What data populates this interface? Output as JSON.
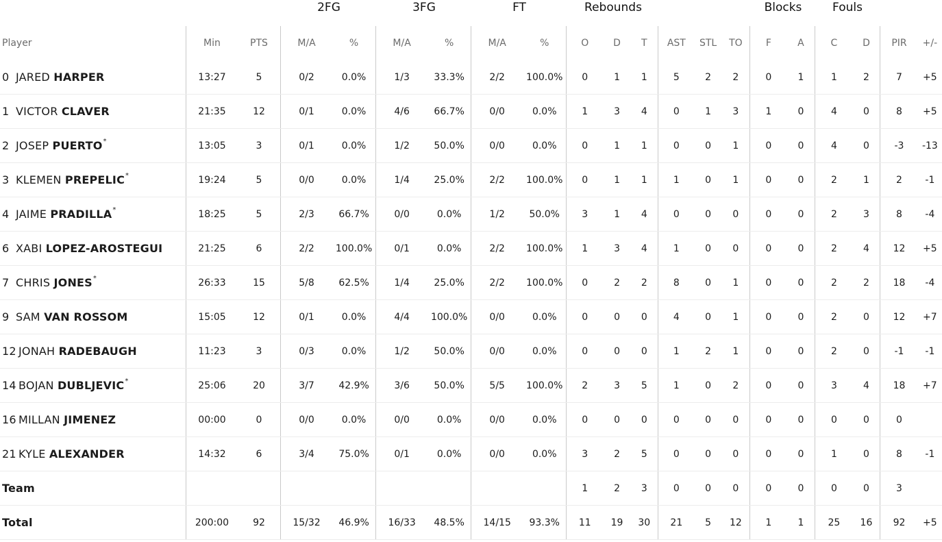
{
  "groups": {
    "fg2": "2FG",
    "fg3": "3FG",
    "ft": "FT",
    "reb": "Rebounds",
    "blk": "Blocks",
    "fouls": "Fouls"
  },
  "headers": [
    "Player",
    "Min",
    "PTS",
    "M/A",
    "%",
    "M/A",
    "%",
    "M/A",
    "%",
    "O",
    "D",
    "T",
    "AST",
    "STL",
    "TO",
    "F",
    "A",
    "C",
    "D",
    "PIR",
    "+/-"
  ],
  "players": [
    {
      "num": "0",
      "first": "JARED",
      "last": "HARPER",
      "star": false,
      "stats": [
        "13:27",
        "5",
        "0/2",
        "0.0%",
        "1/3",
        "33.3%",
        "2/2",
        "100.0%",
        "0",
        "1",
        "1",
        "5",
        "2",
        "2",
        "0",
        "1",
        "1",
        "2",
        "7",
        "+5"
      ]
    },
    {
      "num": "1",
      "first": "VICTOR",
      "last": "CLAVER",
      "star": false,
      "stats": [
        "21:35",
        "12",
        "0/1",
        "0.0%",
        "4/6",
        "66.7%",
        "0/0",
        "0.0%",
        "1",
        "3",
        "4",
        "0",
        "1",
        "3",
        "1",
        "0",
        "4",
        "0",
        "8",
        "+5"
      ]
    },
    {
      "num": "2",
      "first": "JOSEP",
      "last": "PUERTO",
      "star": true,
      "stats": [
        "13:05",
        "3",
        "0/1",
        "0.0%",
        "1/2",
        "50.0%",
        "0/0",
        "0.0%",
        "0",
        "1",
        "1",
        "0",
        "0",
        "1",
        "0",
        "0",
        "4",
        "0",
        "-3",
        "-13"
      ]
    },
    {
      "num": "3",
      "first": "KLEMEN",
      "last": "PREPELIC",
      "star": true,
      "stats": [
        "19:24",
        "5",
        "0/0",
        "0.0%",
        "1/4",
        "25.0%",
        "2/2",
        "100.0%",
        "0",
        "1",
        "1",
        "1",
        "0",
        "1",
        "0",
        "0",
        "2",
        "1",
        "2",
        "-1"
      ]
    },
    {
      "num": "4",
      "first": "JAIME",
      "last": "PRADILLA",
      "star": true,
      "stats": [
        "18:25",
        "5",
        "2/3",
        "66.7%",
        "0/0",
        "0.0%",
        "1/2",
        "50.0%",
        "3",
        "1",
        "4",
        "0",
        "0",
        "0",
        "0",
        "0",
        "2",
        "3",
        "8",
        "-4"
      ]
    },
    {
      "num": "6",
      "first": "XABI",
      "last": "LOPEZ-AROSTEGUI",
      "star": false,
      "stats": [
        "21:25",
        "6",
        "2/2",
        "100.0%",
        "0/1",
        "0.0%",
        "2/2",
        "100.0%",
        "1",
        "3",
        "4",
        "1",
        "0",
        "0",
        "0",
        "0",
        "2",
        "4",
        "12",
        "+5"
      ]
    },
    {
      "num": "7",
      "first": "CHRIS",
      "last": "JONES",
      "star": true,
      "stats": [
        "26:33",
        "15",
        "5/8",
        "62.5%",
        "1/4",
        "25.0%",
        "2/2",
        "100.0%",
        "0",
        "2",
        "2",
        "8",
        "0",
        "1",
        "0",
        "0",
        "2",
        "2",
        "18",
        "-4"
      ]
    },
    {
      "num": "9",
      "first": "SAM",
      "last": "VAN ROSSOM",
      "star": false,
      "stats": [
        "15:05",
        "12",
        "0/1",
        "0.0%",
        "4/4",
        "100.0%",
        "0/0",
        "0.0%",
        "0",
        "0",
        "0",
        "4",
        "0",
        "1",
        "0",
        "0",
        "2",
        "0",
        "12",
        "+7"
      ]
    },
    {
      "num": "12",
      "first": "JONAH",
      "last": "RADEBAUGH",
      "star": false,
      "stats": [
        "11:23",
        "3",
        "0/3",
        "0.0%",
        "1/2",
        "50.0%",
        "0/0",
        "0.0%",
        "0",
        "0",
        "0",
        "1",
        "2",
        "1",
        "0",
        "0",
        "2",
        "0",
        "-1",
        "-1"
      ]
    },
    {
      "num": "14",
      "first": "BOJAN",
      "last": "DUBLJEVIC",
      "star": true,
      "stats": [
        "25:06",
        "20",
        "3/7",
        "42.9%",
        "3/6",
        "50.0%",
        "5/5",
        "100.0%",
        "2",
        "3",
        "5",
        "1",
        "0",
        "2",
        "0",
        "0",
        "3",
        "4",
        "18",
        "+7"
      ]
    },
    {
      "num": "16",
      "first": "MILLAN",
      "last": "JIMENEZ",
      "star": false,
      "stats": [
        "00:00",
        "0",
        "0/0",
        "0.0%",
        "0/0",
        "0.0%",
        "0/0",
        "0.0%",
        "0",
        "0",
        "0",
        "0",
        "0",
        "0",
        "0",
        "0",
        "0",
        "0",
        "0",
        ""
      ]
    },
    {
      "num": "21",
      "first": "KYLE",
      "last": "ALEXANDER",
      "star": false,
      "stats": [
        "14:32",
        "6",
        "3/4",
        "75.0%",
        "0/1",
        "0.0%",
        "0/0",
        "0.0%",
        "3",
        "2",
        "5",
        "0",
        "0",
        "0",
        "0",
        "0",
        "1",
        "0",
        "8",
        "-1"
      ]
    }
  ],
  "team_row": {
    "label": "Team",
    "stats": [
      "",
      "",
      "",
      "",
      "",
      "",
      "",
      "",
      "1",
      "2",
      "3",
      "0",
      "0",
      "0",
      "0",
      "0",
      "0",
      "0",
      "3",
      ""
    ]
  },
  "total_row": {
    "label": "Total",
    "stats": [
      "200:00",
      "92",
      "15/32",
      "46.9%",
      "16/33",
      "48.5%",
      "14/15",
      "93.3%",
      "11",
      "19",
      "30",
      "21",
      "5",
      "12",
      "1",
      "1",
      "25",
      "16",
      "92",
      "+5"
    ]
  },
  "star_symbol": "*"
}
